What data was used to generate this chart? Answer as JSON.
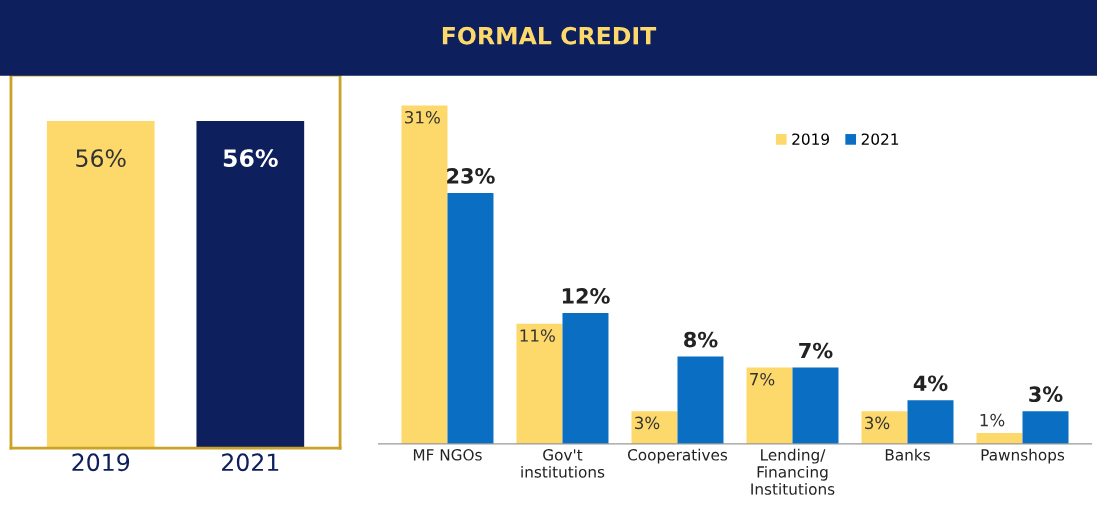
{
  "chart_data": [
    {
      "type": "bar",
      "categories": [
        "2019",
        "2021"
      ],
      "values": [
        56,
        56
      ],
      "colors": [
        "#fdd96b",
        "#0d1f5c"
      ],
      "value_labels": [
        "56%",
        "56%"
      ],
      "tick_labels": "x",
      "grid": false,
      "legend": false
    },
    {
      "type": "bar",
      "title": "FORMAL CREDIT",
      "categories": [
        "MF NGOs",
        "Gov't\ninstitutions",
        "Cooperatives",
        "Lending/\nFinancing\nInstitutions",
        "Banks",
        "Pawnshops"
      ],
      "series": [
        {
          "name": "2019",
          "color": "#fdd96b",
          "values": [
            31,
            11,
            3,
            7,
            3,
            1
          ],
          "value_labels": [
            "31%",
            "11%",
            "3%",
            "7%",
            "3%",
            "1%"
          ]
        },
        {
          "name": "2021",
          "color": "#0a6fc2",
          "values": [
            23,
            12,
            8,
            7,
            4,
            3
          ],
          "value_labels": [
            "23%",
            "12%",
            "8%",
            "7%",
            "4%",
            "3%"
          ]
        }
      ],
      "tick_labels": "x",
      "grid": false,
      "legend": "top right"
    }
  ]
}
